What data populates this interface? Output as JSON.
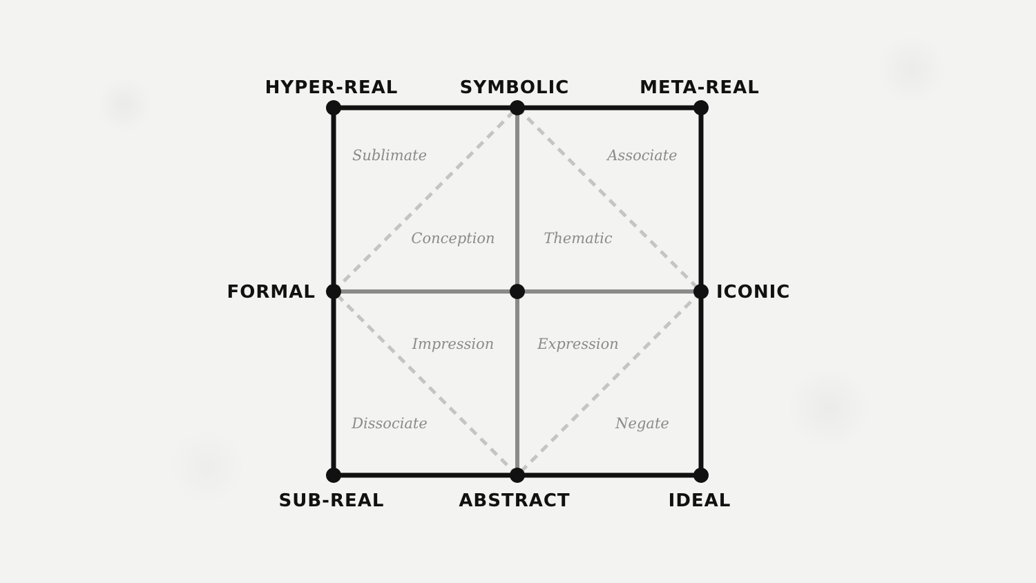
{
  "colors": {
    "frame": "#111111",
    "cross": "#8a8a8a",
    "dashed": "#c4c4c4",
    "node": "#111111",
    "region_text": "#8a8a8a",
    "background": "#f3f3f1"
  },
  "labels": {
    "top_left": "HYPER-REAL",
    "top_center": "SYMBOLIC",
    "top_right": "META-REAL",
    "middle_left": "FORMAL",
    "middle_right": "ICONIC",
    "bottom_left": "SUB-REAL",
    "bottom_center": "ABSTRACT",
    "bottom_right": "IDEAL"
  },
  "regions": {
    "sublimate": "Sublimate",
    "associate": "Associate",
    "conception": "Conception",
    "thematic": "Thematic",
    "impression": "Impression",
    "expression": "Expression",
    "dissociate": "Dissociate",
    "negate": "Negate"
  }
}
